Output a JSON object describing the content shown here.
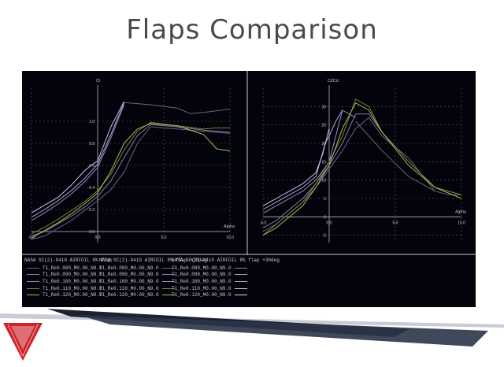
{
  "slide": {
    "title": "Flaps Comparison"
  },
  "colors": {
    "background": "#03030b",
    "grid": "#5a5a6a",
    "axis": "#b8b8c8",
    "text": "#c8c8d8",
    "logo_red": "#d0222a"
  },
  "legend": {
    "headers": [
      "NASA SC(2)-0410 AIRFOIL 8% flap",
      "NASA SC(2)-0410 AIRFOIL 8% flap +20deg",
      "NASA SC(2)-0410 AIRFOIL 8% flap +30deg"
    ],
    "entries": [
      {
        "label": "T1_Re0.080_M0.00_N9.0",
        "color": "#7a5a8a"
      },
      {
        "label": "T1_Re0.090_M0.00_N9.0",
        "color": "#8a7aa8"
      },
      {
        "label": "T1_Re0.100_M0.00_N9.0",
        "color": "#9a8ac8"
      },
      {
        "label": "T1_Re0.110_M0.00_N9.0",
        "color": "#6a8a3a"
      },
      {
        "label": "T1_Re0.120_M0.00_N9.0",
        "color": "#a0c050"
      }
    ],
    "col3_colors": [
      "#8a8a8a",
      "#a0a0a0",
      "#b0b0b0",
      "#c8c8c8",
      "#e0e0e0"
    ]
  },
  "chart_data": [
    {
      "type": "line",
      "ylabel": "Cl",
      "xlabel": "Alpha",
      "xlim": [
        -5,
        10
      ],
      "ylim": [
        -0.1,
        1.3
      ],
      "xticks": [
        -5.0,
        0.0,
        5.0,
        10.0
      ],
      "xtick_labels": [
        "-5.0",
        "0.0",
        "5.0",
        "10.0"
      ],
      "yticks": [
        0.0,
        0.2,
        0.4,
        0.6,
        0.8,
        1.0
      ],
      "ytick_labels": [
        "0.0",
        "0.2",
        "0.4",
        "0.6",
        "0.8",
        "1.0"
      ],
      "series": [
        {
          "color": "#9a8ac8",
          "points": [
            [
              -5,
              0.1
            ],
            [
              -4,
              0.17
            ],
            [
              -3,
              0.25
            ],
            [
              -2,
              0.34
            ],
            [
              -1,
              0.45
            ],
            [
              0,
              0.58
            ],
            [
              1,
              0.85
            ],
            [
              2,
              1.15
            ]
          ]
        },
        {
          "color": "#b0a8d8",
          "points": [
            [
              -5,
              0.13
            ],
            [
              -4,
              0.2
            ],
            [
              -3,
              0.28
            ],
            [
              -2,
              0.37
            ],
            [
              -1,
              0.48
            ],
            [
              0,
              0.61
            ],
            [
              1,
              0.88
            ],
            [
              2,
              1.17
            ]
          ]
        },
        {
          "color": "#c8c8e0",
          "points": [
            [
              -5,
              0.17
            ],
            [
              -4,
              0.24
            ],
            [
              -3,
              0.31
            ],
            [
              -2,
              0.42
            ],
            [
              -1,
              0.55
            ],
            [
              -0.5,
              0.6
            ],
            [
              0,
              0.64
            ],
            [
              1,
              0.95
            ],
            [
              2,
              1.18
            ]
          ]
        },
        {
          "color": "#7a5a8a",
          "points": [
            [
              -5,
              -0.07
            ],
            [
              -4,
              -0.04
            ],
            [
              -3,
              0.03
            ],
            [
              -2,
              0.1
            ],
            [
              -1,
              0.19
            ],
            [
              0,
              0.28
            ],
            [
              1,
              0.38
            ],
            [
              2,
              0.54
            ],
            [
              3,
              0.8
            ],
            [
              4,
              0.95
            ],
            [
              6,
              0.93
            ],
            [
              8,
              0.91
            ],
            [
              10,
              0.89
            ]
          ]
        },
        {
          "color": "#8a7aa8",
          "points": [
            [
              -5,
              -0.04
            ],
            [
              -4,
              0.0
            ],
            [
              -3,
              0.07
            ],
            [
              -2,
              0.14
            ],
            [
              -1,
              0.22
            ],
            [
              0,
              0.32
            ],
            [
              1,
              0.46
            ],
            [
              2,
              0.67
            ],
            [
              3,
              0.87
            ],
            [
              4,
              0.97
            ],
            [
              6,
              0.95
            ],
            [
              8,
              0.92
            ],
            [
              10,
              0.9
            ]
          ]
        },
        {
          "color": "#6a8a3a",
          "points": [
            [
              -5,
              -0.02
            ],
            [
              -4,
              0.04
            ],
            [
              -3,
              0.11
            ],
            [
              -2,
              0.19
            ],
            [
              -1,
              0.27
            ],
            [
              0,
              0.37
            ],
            [
              1,
              0.52
            ],
            [
              2,
              0.74
            ],
            [
              3,
              0.91
            ],
            [
              4,
              0.99
            ],
            [
              6,
              0.96
            ],
            [
              8,
              0.93
            ],
            [
              9,
              0.94
            ],
            [
              10,
              0.94
            ]
          ]
        },
        {
          "color": "#a0c050",
          "points": [
            [
              -5,
              -0.06
            ],
            [
              -4,
              0.01
            ],
            [
              -3,
              0.08
            ],
            [
              -2,
              0.16
            ],
            [
              -1,
              0.25
            ],
            [
              0,
              0.35
            ],
            [
              1,
              0.55
            ],
            [
              2,
              0.8
            ],
            [
              3,
              0.93
            ],
            [
              4,
              0.98
            ],
            [
              6,
              0.96
            ],
            [
              8,
              0.88
            ],
            [
              9,
              0.75
            ],
            [
              10,
              0.73
            ]
          ]
        },
        {
          "color": "#6a6a72",
          "points": [
            [
              2,
              1.17
            ],
            [
              4,
              1.15
            ],
            [
              6,
              1.12
            ],
            [
              7,
              1.07
            ],
            [
              8,
              1.08
            ],
            [
              10,
              1.11
            ]
          ]
        }
      ]
    },
    {
      "type": "line",
      "ylabel": "Cl/Cd",
      "xlabel": "Alpha",
      "xlim": [
        -5,
        10
      ],
      "ylim": [
        -7,
        35
      ],
      "xticks": [
        -5.0,
        0.0,
        5.0,
        10.0
      ],
      "xtick_labels": [
        "-5.0",
        "0.0",
        "5.0",
        "10.0"
      ],
      "yticks": [
        -5,
        0,
        5,
        10,
        15,
        20,
        25,
        30
      ],
      "ytick_labels": [
        "-5",
        "0",
        "5",
        "10",
        "15",
        "20",
        "25",
        "30"
      ],
      "series": [
        {
          "color": "#9a8ac8",
          "points": [
            [
              -5,
              1
            ],
            [
              -4,
              3
            ],
            [
              -3,
              5
            ],
            [
              -2,
              7
            ],
            [
              -1,
              10
            ],
            [
              0,
              15
            ],
            [
              1,
              29
            ],
            [
              2,
              27
            ]
          ]
        },
        {
          "color": "#b0a8d8",
          "points": [
            [
              -5,
              2
            ],
            [
              -4,
              4
            ],
            [
              -3,
              6
            ],
            [
              -2,
              8
            ],
            [
              -1,
              11
            ],
            [
              -0.3,
              20
            ],
            [
              0,
              22
            ],
            [
              0.5,
              26
            ],
            [
              1,
              29
            ]
          ]
        },
        {
          "color": "#c8c8e0",
          "points": [
            [
              -5,
              3
            ],
            [
              -4,
              5
            ],
            [
              -3,
              7
            ],
            [
              -2,
              9
            ],
            [
              -1,
              12
            ],
            [
              -0.5,
              17
            ],
            [
              0,
              24
            ]
          ]
        },
        {
          "color": "#7a5a8a",
          "points": [
            [
              -5,
              -4
            ],
            [
              -4,
              -2
            ],
            [
              -3,
              1
            ],
            [
              -2,
              4
            ],
            [
              -1,
              8
            ],
            [
              0,
              13
            ],
            [
              1,
              18
            ],
            [
              2,
              24
            ],
            [
              3,
              27
            ],
            [
              4,
              22
            ],
            [
              6,
              16
            ],
            [
              8,
              7
            ],
            [
              9,
              6
            ],
            [
              10,
              6
            ]
          ]
        },
        {
          "color": "#8a7aa8",
          "points": [
            [
              -5,
              -3
            ],
            [
              -4,
              -1
            ],
            [
              -3,
              2
            ],
            [
              -2,
              5
            ],
            [
              -1,
              9
            ],
            [
              0,
              14
            ],
            [
              1,
              20
            ],
            [
              2,
              28
            ],
            [
              3,
              28
            ],
            [
              4,
              23
            ],
            [
              6,
              15
            ],
            [
              8,
              8
            ],
            [
              10,
              6
            ]
          ]
        },
        {
          "color": "#6a8a3a",
          "points": [
            [
              -5,
              -5
            ],
            [
              -4,
              -2
            ],
            [
              -3,
              1
            ],
            [
              -2,
              4
            ],
            [
              -1,
              9
            ],
            [
              0,
              15
            ],
            [
              1,
              22
            ],
            [
              2,
              32
            ],
            [
              3,
              30
            ],
            [
              4,
              23
            ],
            [
              6,
              15
            ],
            [
              8,
              8
            ],
            [
              10,
              6
            ]
          ]
        },
        {
          "color": "#a0c050",
          "points": [
            [
              -5,
              -5
            ],
            [
              -4,
              -3
            ],
            [
              -3,
              0
            ],
            [
              -2,
              3
            ],
            [
              -1,
              8
            ],
            [
              0,
              14
            ],
            [
              1,
              24
            ],
            [
              2,
              31
            ],
            [
              3,
              29
            ],
            [
              4,
              23
            ],
            [
              6,
              14
            ],
            [
              8,
              8
            ],
            [
              10,
              5
            ]
          ]
        },
        {
          "color": "#6a6a72",
          "points": [
            [
              2,
              26
            ],
            [
              4,
              18
            ],
            [
              6,
              11
            ],
            [
              8,
              7
            ]
          ]
        }
      ]
    }
  ]
}
